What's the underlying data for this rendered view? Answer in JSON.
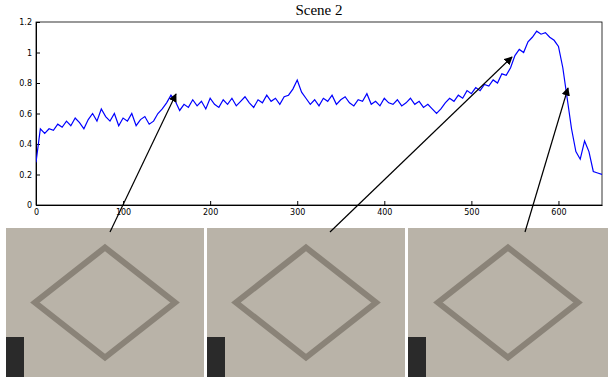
{
  "chart_data": {
    "type": "line",
    "title": "Scene 2",
    "color": "#0000ff",
    "x": [
      0,
      5,
      10,
      15,
      20,
      25,
      30,
      35,
      40,
      45,
      50,
      55,
      60,
      65,
      70,
      75,
      80,
      85,
      90,
      95,
      100,
      105,
      110,
      115,
      120,
      125,
      130,
      135,
      140,
      145,
      150,
      155,
      160,
      165,
      170,
      175,
      180,
      185,
      190,
      195,
      200,
      205,
      210,
      215,
      220,
      225,
      230,
      235,
      240,
      245,
      250,
      255,
      260,
      265,
      270,
      275,
      280,
      285,
      290,
      295,
      300,
      305,
      310,
      315,
      320,
      325,
      330,
      335,
      340,
      345,
      350,
      355,
      360,
      365,
      370,
      375,
      380,
      385,
      390,
      395,
      400,
      405,
      410,
      415,
      420,
      425,
      430,
      435,
      440,
      445,
      450,
      455,
      460,
      465,
      470,
      475,
      480,
      485,
      490,
      495,
      500,
      505,
      510,
      515,
      520,
      525,
      530,
      535,
      540,
      545,
      550,
      555,
      560,
      565,
      570,
      575,
      580,
      585,
      590,
      595,
      600,
      605,
      610,
      615,
      620,
      625,
      630,
      635,
      640,
      645,
      650
    ],
    "values": [
      0.28,
      0.5,
      0.47,
      0.5,
      0.49,
      0.53,
      0.51,
      0.55,
      0.52,
      0.57,
      0.54,
      0.5,
      0.56,
      0.6,
      0.55,
      0.63,
      0.58,
      0.55,
      0.6,
      0.52,
      0.57,
      0.55,
      0.6,
      0.52,
      0.56,
      0.58,
      0.53,
      0.55,
      0.6,
      0.63,
      0.67,
      0.72,
      0.68,
      0.62,
      0.66,
      0.64,
      0.69,
      0.65,
      0.68,
      0.63,
      0.7,
      0.66,
      0.64,
      0.69,
      0.66,
      0.7,
      0.65,
      0.68,
      0.71,
      0.67,
      0.64,
      0.69,
      0.67,
      0.72,
      0.68,
      0.7,
      0.66,
      0.71,
      0.72,
      0.76,
      0.82,
      0.74,
      0.7,
      0.66,
      0.69,
      0.65,
      0.7,
      0.68,
      0.72,
      0.66,
      0.69,
      0.71,
      0.67,
      0.65,
      0.69,
      0.68,
      0.73,
      0.66,
      0.68,
      0.65,
      0.7,
      0.67,
      0.66,
      0.69,
      0.65,
      0.67,
      0.7,
      0.66,
      0.68,
      0.64,
      0.66,
      0.63,
      0.6,
      0.63,
      0.67,
      0.7,
      0.68,
      0.72,
      0.7,
      0.75,
      0.73,
      0.77,
      0.75,
      0.79,
      0.78,
      0.82,
      0.8,
      0.86,
      0.85,
      0.9,
      0.98,
      1.02,
      1.0,
      1.07,
      1.1,
      1.14,
      1.12,
      1.13,
      1.1,
      1.08,
      1.04,
      0.9,
      0.7,
      0.5,
      0.35,
      0.3,
      0.42,
      0.35,
      0.22,
      0.21,
      0.2
    ],
    "xlim": [
      0,
      650
    ],
    "xticks": [
      0,
      100,
      200,
      300,
      400,
      500,
      600
    ],
    "ylim": [
      0,
      1.2
    ],
    "yticks": [
      0,
      0.2,
      0.4,
      0.6,
      0.8,
      1,
      1.2
    ],
    "grid": false
  }
}
